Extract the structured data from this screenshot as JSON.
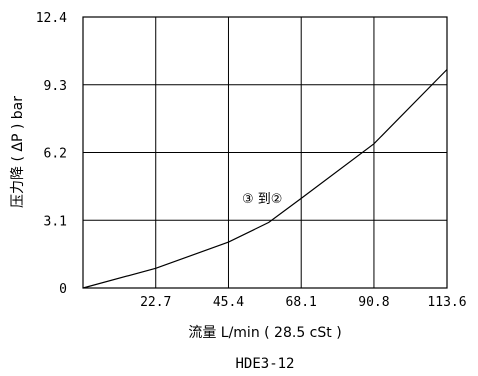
{
  "chart_data": {
    "type": "line",
    "x": [
      0,
      22.7,
      45.4,
      58,
      68.1,
      90.8,
      113.6
    ],
    "series": [
      {
        "values": [
          0,
          0.9,
          2.1,
          3.0,
          4.1,
          6.6,
          10.0
        ]
      }
    ],
    "xlim": [
      0,
      113.6
    ],
    "ylim": [
      0,
      12.4
    ],
    "x_ticks": [
      "22.7",
      "45.4",
      "68.1",
      "90.8",
      "113.6"
    ],
    "y_ticks": [
      "0",
      "3.1",
      "6.2",
      "9.3",
      "12.4"
    ],
    "xlabel": "流量 L/min ( 28.5 cSt )",
    "ylabel": "压力降 ( ΔP ) bar",
    "subtitle": "HDE3-12",
    "annotation": "③ 到②",
    "grid": true,
    "line_color": "#000000"
  }
}
